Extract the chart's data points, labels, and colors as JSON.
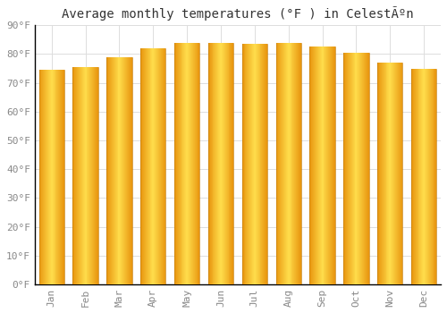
{
  "title": "Average monthly temperatures (°F ) in CelestÃºn",
  "months": [
    "Jan",
    "Feb",
    "Mar",
    "Apr",
    "May",
    "Jun",
    "Jul",
    "Aug",
    "Sep",
    "Oct",
    "Nov",
    "Dec"
  ],
  "values": [
    74.5,
    75.5,
    79.0,
    82.0,
    84.0,
    84.0,
    83.5,
    84.0,
    82.5,
    80.5,
    77.0,
    75.0
  ],
  "bar_color_main": "#FFA500",
  "bar_color_edge": "#E8960A",
  "ylim": [
    0,
    90
  ],
  "yticks": [
    0,
    10,
    20,
    30,
    40,
    50,
    60,
    70,
    80,
    90
  ],
  "ytick_labels": [
    "0°F",
    "10°F",
    "20°F",
    "30°F",
    "40°F",
    "50°F",
    "60°F",
    "70°F",
    "80°F",
    "90°F"
  ],
  "bg_color": "#FFFFFF",
  "grid_color": "#DDDDDD",
  "title_fontsize": 10,
  "tick_fontsize": 8,
  "bar_width": 0.75
}
